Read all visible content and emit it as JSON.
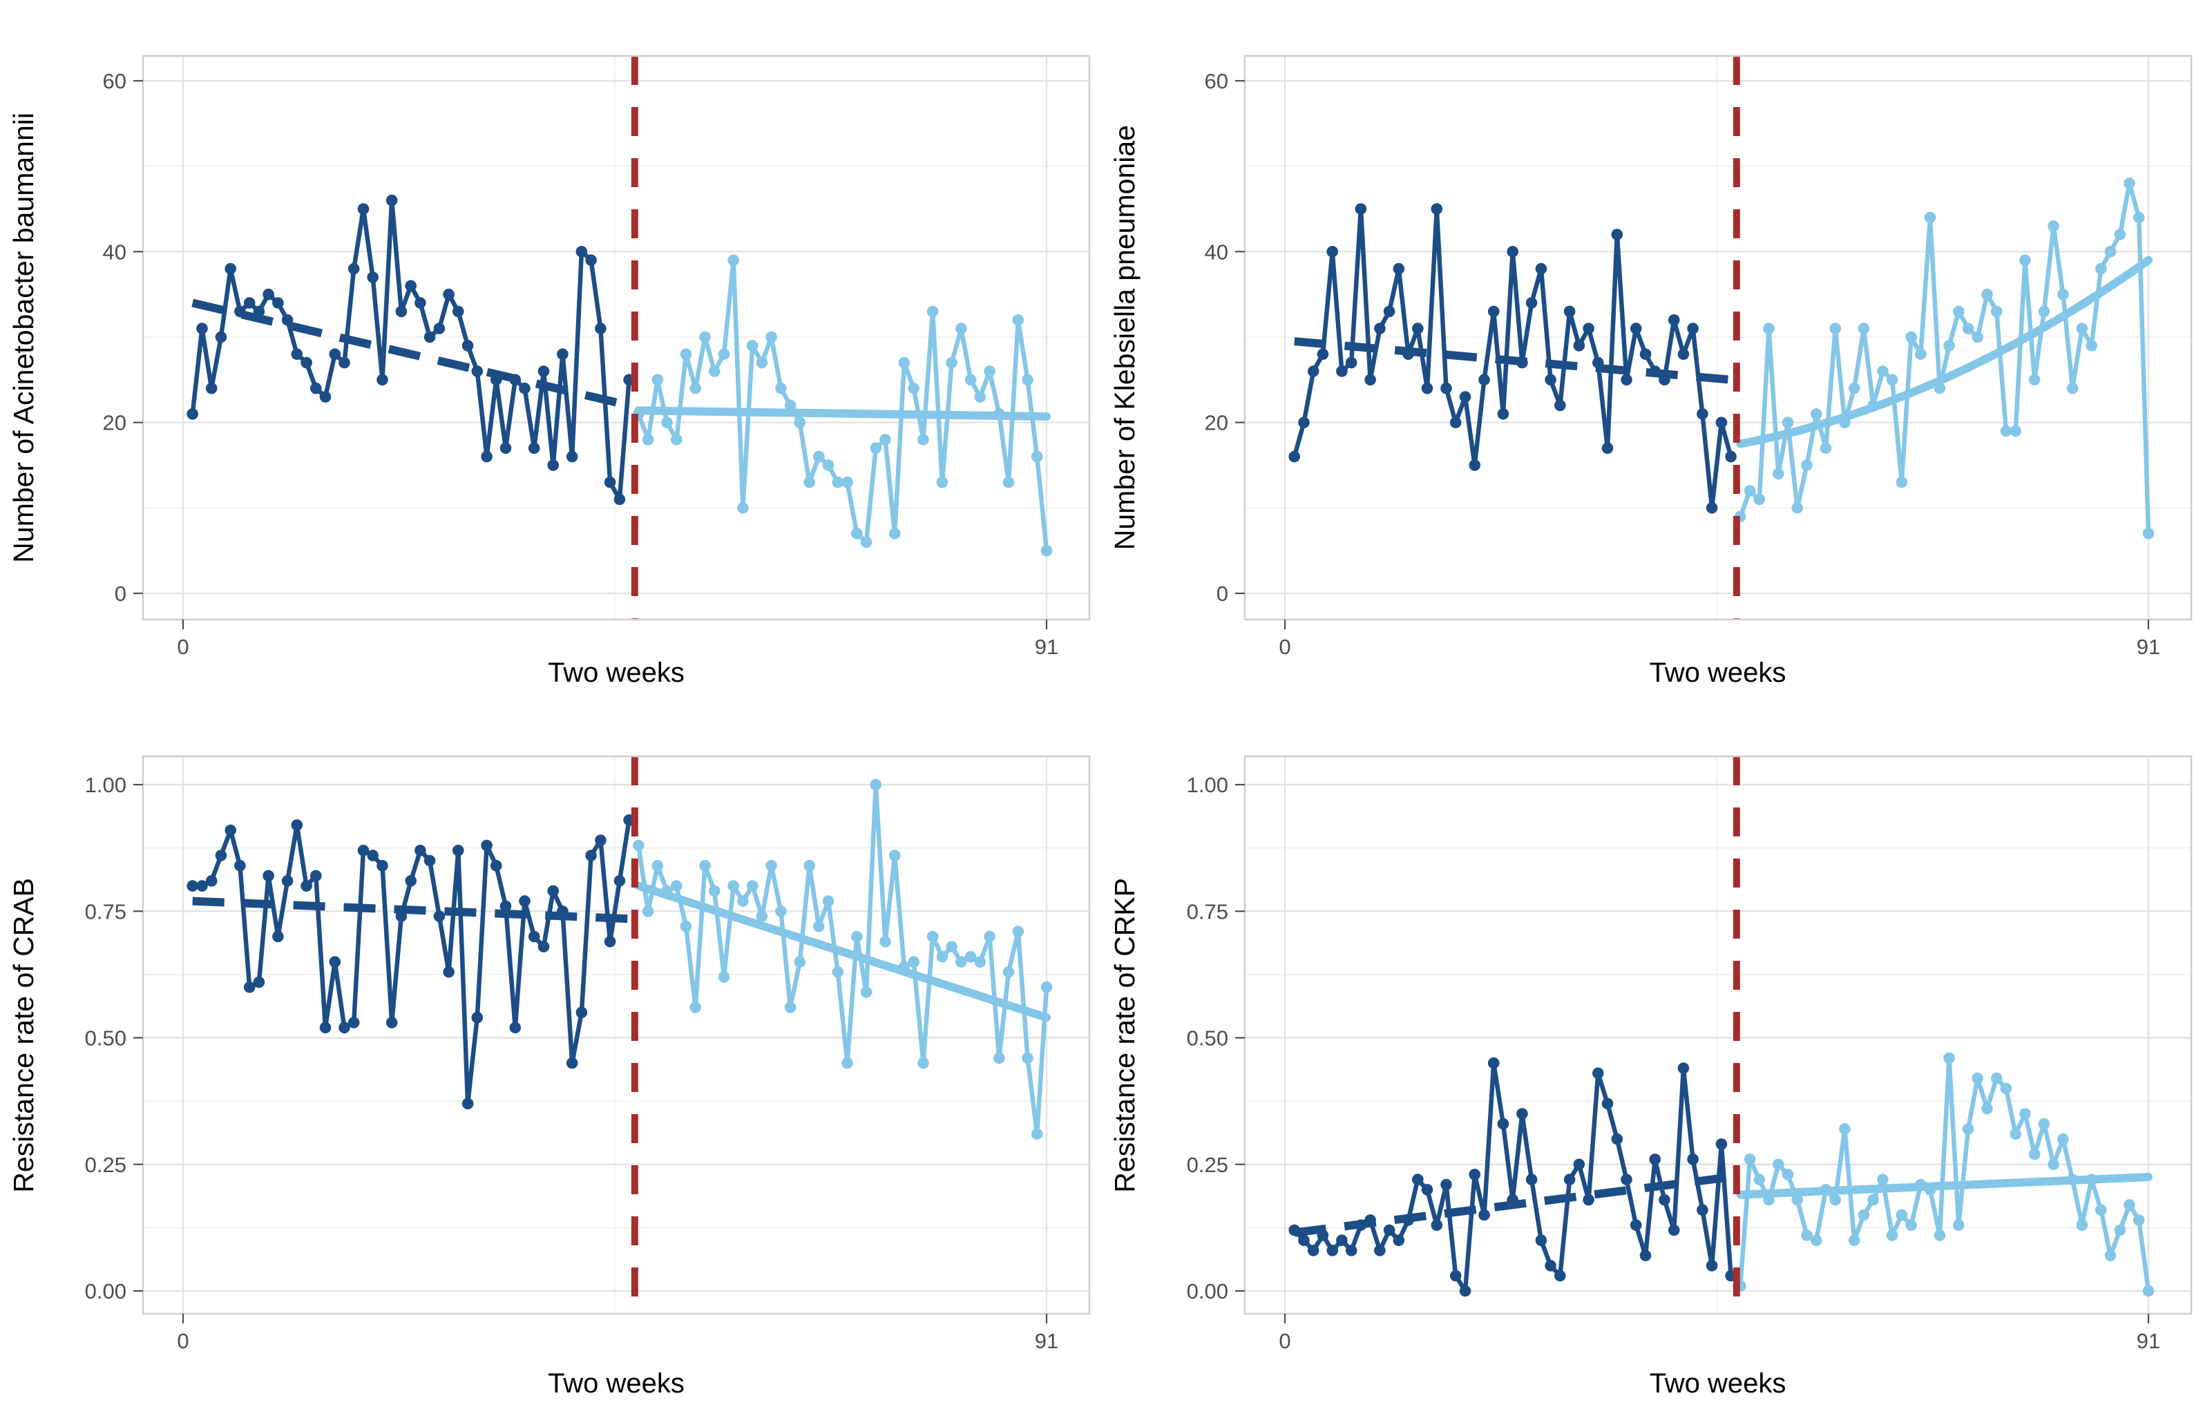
{
  "figure_title": "",
  "style": {
    "background": "#ffffff",
    "pre_color": "#1c4d86",
    "post_color": "#84c6e8",
    "intervention_color": "#a62d2d",
    "grid_major_color": "#e3e3e3",
    "grid_minor_color": "#f0f0f0",
    "panel_border_color": "#cfcfcf",
    "tick_mark_color": "#4d4d4d",
    "tick_label_color": "#4d4d4d",
    "axis_title_color": "#000000"
  },
  "chart_data": [
    {
      "type": "line",
      "panel": "top-left",
      "ylabel": "Number of Acinetobacter baumannii",
      "xlabel": "Two weeks",
      "ylim": [
        0,
        63.5
      ],
      "yticks": [
        0,
        20,
        40,
        60
      ],
      "ytick_labels": [
        "0",
        "20",
        "40",
        "60"
      ],
      "yminor": [
        10,
        30,
        50
      ],
      "x_tick_values": [
        0,
        91
      ],
      "x_tick_labels": [
        "0",
        "91"
      ],
      "x_minor": [
        45.5
      ],
      "intervention_x": 47.6,
      "grid": true,
      "legend": "none",
      "series": [
        {
          "name": "pre-intervention observed",
          "color": "#1c4d86",
          "x_start": 1,
          "values": [
            21,
            31,
            24,
            30,
            38,
            33,
            34,
            33,
            35,
            34,
            32,
            28,
            27,
            24,
            23,
            28,
            27,
            38,
            45,
            37,
            25,
            46,
            33,
            36,
            34,
            30,
            31,
            35,
            33,
            29,
            26,
            16,
            25,
            17,
            25,
            24,
            17,
            26,
            15,
            28,
            16,
            40,
            39,
            31,
            13,
            11,
            25
          ]
        },
        {
          "name": "post-intervention observed",
          "color": "#84c6e8",
          "x_start": 48,
          "values": [
            21,
            18,
            25,
            20,
            18,
            28,
            24,
            30,
            26,
            28,
            39,
            10,
            29,
            27,
            30,
            24,
            22,
            20,
            13,
            16,
            15,
            13,
            13,
            7,
            6,
            17,
            18,
            7,
            27,
            24,
            18,
            33,
            13,
            27,
            31,
            25,
            23,
            26,
            21,
            13,
            32,
            25,
            16,
            5
          ]
        }
      ],
      "trend_pre": {
        "x1": 1,
        "y1": 34,
        "x2": 47,
        "y2": 22,
        "style": "dashed"
      },
      "trend_post": {
        "x1": 48,
        "y1": 21.4,
        "x2": 91,
        "y2": 20.7,
        "style": "solid",
        "curve": false
      }
    },
    {
      "type": "line",
      "panel": "top-right",
      "ylabel": "Number of Klebsiella pneumoniae",
      "xlabel": "Two weeks",
      "ylim": [
        0,
        63.5
      ],
      "yticks": [
        0,
        20,
        40,
        60
      ],
      "ytick_labels": [
        "0",
        "20",
        "40",
        "60"
      ],
      "yminor": [
        10,
        30,
        50
      ],
      "x_tick_values": [
        0,
        91
      ],
      "x_tick_labels": [
        "0",
        "91"
      ],
      "x_minor": [
        45.5
      ],
      "intervention_x": 47.6,
      "grid": true,
      "legend": "none",
      "series": [
        {
          "name": "pre-intervention observed",
          "color": "#1c4d86",
          "x_start": 1,
          "values": [
            16,
            20,
            26,
            28,
            40,
            26,
            27,
            45,
            25,
            31,
            33,
            38,
            28,
            31,
            24,
            45,
            24,
            20,
            23,
            15,
            25,
            33,
            21,
            40,
            27,
            34,
            38,
            25,
            22,
            33,
            29,
            31,
            27,
            17,
            42,
            25,
            31,
            28,
            26,
            25,
            32,
            28,
            31,
            21,
            10,
            20,
            16
          ]
        },
        {
          "name": "post-intervention observed",
          "color": "#84c6e8",
          "x_start": 48,
          "values": [
            9,
            12,
            11,
            31,
            14,
            20,
            10,
            15,
            21,
            17,
            31,
            20,
            24,
            31,
            22,
            26,
            25,
            13,
            30,
            28,
            44,
            24,
            29,
            33,
            31,
            30,
            35,
            33,
            19,
            19,
            39,
            25,
            33,
            43,
            35,
            24,
            31,
            29,
            38,
            40,
            42,
            48,
            44,
            7
          ]
        }
      ],
      "trend_pre": {
        "x1": 1,
        "y1": 29.5,
        "x2": 47,
        "y2": 25,
        "style": "dashed"
      },
      "trend_post": {
        "x1": 48,
        "y1": 17.5,
        "cx": 69.5,
        "cy": 22,
        "x2": 91,
        "y2": 39,
        "style": "solid",
        "curve": true
      }
    },
    {
      "type": "line",
      "panel": "bottom-left",
      "ylabel": "Resistance rate of CRAB",
      "xlabel": "Two weeks",
      "ylim": [
        0,
        1.05
      ],
      "yticks": [
        0,
        0.25,
        0.5,
        0.75,
        1.0
      ],
      "ytick_labels": [
        "0.00",
        "0.25",
        "0.50",
        "0.75",
        "1.00"
      ],
      "yminor": [
        0.125,
        0.375,
        0.625,
        0.875
      ],
      "x_tick_values": [
        0,
        91
      ],
      "x_tick_labels": [
        "0",
        "91"
      ],
      "x_minor": [
        45.5
      ],
      "intervention_x": 47.6,
      "grid": true,
      "legend": "none",
      "series": [
        {
          "name": "pre-intervention observed",
          "color": "#1c4d86",
          "x_start": 1,
          "values": [
            0.8,
            0.8,
            0.81,
            0.86,
            0.91,
            0.84,
            0.6,
            0.61,
            0.82,
            0.7,
            0.81,
            0.92,
            0.8,
            0.82,
            0.52,
            0.65,
            0.52,
            0.53,
            0.87,
            0.86,
            0.84,
            0.53,
            0.74,
            0.81,
            0.87,
            0.85,
            0.74,
            0.63,
            0.87,
            0.37,
            0.54,
            0.88,
            0.84,
            0.76,
            0.52,
            0.77,
            0.7,
            0.68,
            0.79,
            0.75,
            0.45,
            0.55,
            0.86,
            0.89,
            0.69,
            0.81,
            0.93
          ]
        },
        {
          "name": "post-intervention observed",
          "color": "#84c6e8",
          "x_start": 48,
          "values": [
            0.88,
            0.75,
            0.84,
            0.79,
            0.8,
            0.72,
            0.56,
            0.84,
            0.79,
            0.62,
            0.8,
            0.77,
            0.8,
            0.74,
            0.84,
            0.75,
            0.56,
            0.65,
            0.84,
            0.72,
            0.77,
            0.63,
            0.45,
            0.7,
            0.59,
            1.0,
            0.69,
            0.86,
            0.64,
            0.65,
            0.45,
            0.7,
            0.66,
            0.68,
            0.65,
            0.66,
            0.65,
            0.7,
            0.46,
            0.63,
            0.71,
            0.46,
            0.31,
            0.6
          ]
        }
      ],
      "trend_pre": {
        "x1": 1,
        "y1": 0.77,
        "x2": 47,
        "y2": 0.735,
        "style": "dashed"
      },
      "trend_post": {
        "x1": 48,
        "y1": 0.8,
        "x2": 91,
        "y2": 0.54,
        "style": "solid",
        "curve": false
      }
    },
    {
      "type": "line",
      "panel": "bottom-right",
      "ylabel": "Resistance rate of CRKP",
      "xlabel": "Two weeks",
      "ylim": [
        0,
        1.05
      ],
      "yticks": [
        0,
        0.25,
        0.5,
        0.75,
        1.0
      ],
      "ytick_labels": [
        "0.00",
        "0.25",
        "0.50",
        "0.75",
        "1.00"
      ],
      "yminor": [
        0.125,
        0.375,
        0.625,
        0.875
      ],
      "x_tick_values": [
        0,
        91
      ],
      "x_tick_labels": [
        "0",
        "91"
      ],
      "x_minor": [
        45.5
      ],
      "intervention_x": 47.6,
      "grid": true,
      "legend": "none",
      "series": [
        {
          "name": "pre-intervention observed",
          "color": "#1c4d86",
          "x_start": 1,
          "values": [
            0.12,
            0.1,
            0.08,
            0.11,
            0.08,
            0.1,
            0.08,
            0.13,
            0.14,
            0.08,
            0.12,
            0.1,
            0.14,
            0.22,
            0.2,
            0.13,
            0.21,
            0.03,
            0.0,
            0.23,
            0.15,
            0.45,
            0.33,
            0.18,
            0.35,
            0.22,
            0.1,
            0.05,
            0.03,
            0.22,
            0.25,
            0.18,
            0.43,
            0.37,
            0.3,
            0.22,
            0.13,
            0.07,
            0.26,
            0.18,
            0.12,
            0.44,
            0.26,
            0.16,
            0.05,
            0.29,
            0.03
          ]
        },
        {
          "name": "post-intervention observed",
          "color": "#84c6e8",
          "x_start": 48,
          "values": [
            0.01,
            0.26,
            0.22,
            0.18,
            0.25,
            0.23,
            0.18,
            0.11,
            0.1,
            0.2,
            0.18,
            0.32,
            0.1,
            0.15,
            0.18,
            0.22,
            0.11,
            0.15,
            0.13,
            0.21,
            0.2,
            0.11,
            0.46,
            0.13,
            0.32,
            0.42,
            0.36,
            0.42,
            0.4,
            0.31,
            0.35,
            0.27,
            0.33,
            0.25,
            0.3,
            0.22,
            0.13,
            0.22,
            0.16,
            0.07,
            0.12,
            0.17,
            0.14,
            0.0
          ]
        }
      ],
      "trend_pre": {
        "x1": 1,
        "y1": 0.115,
        "x2": 47,
        "y2": 0.225,
        "style": "dashed"
      },
      "trend_post": {
        "x1": 48,
        "y1": 0.19,
        "x2": 91,
        "y2": 0.225,
        "style": "solid",
        "curve": false
      }
    }
  ]
}
